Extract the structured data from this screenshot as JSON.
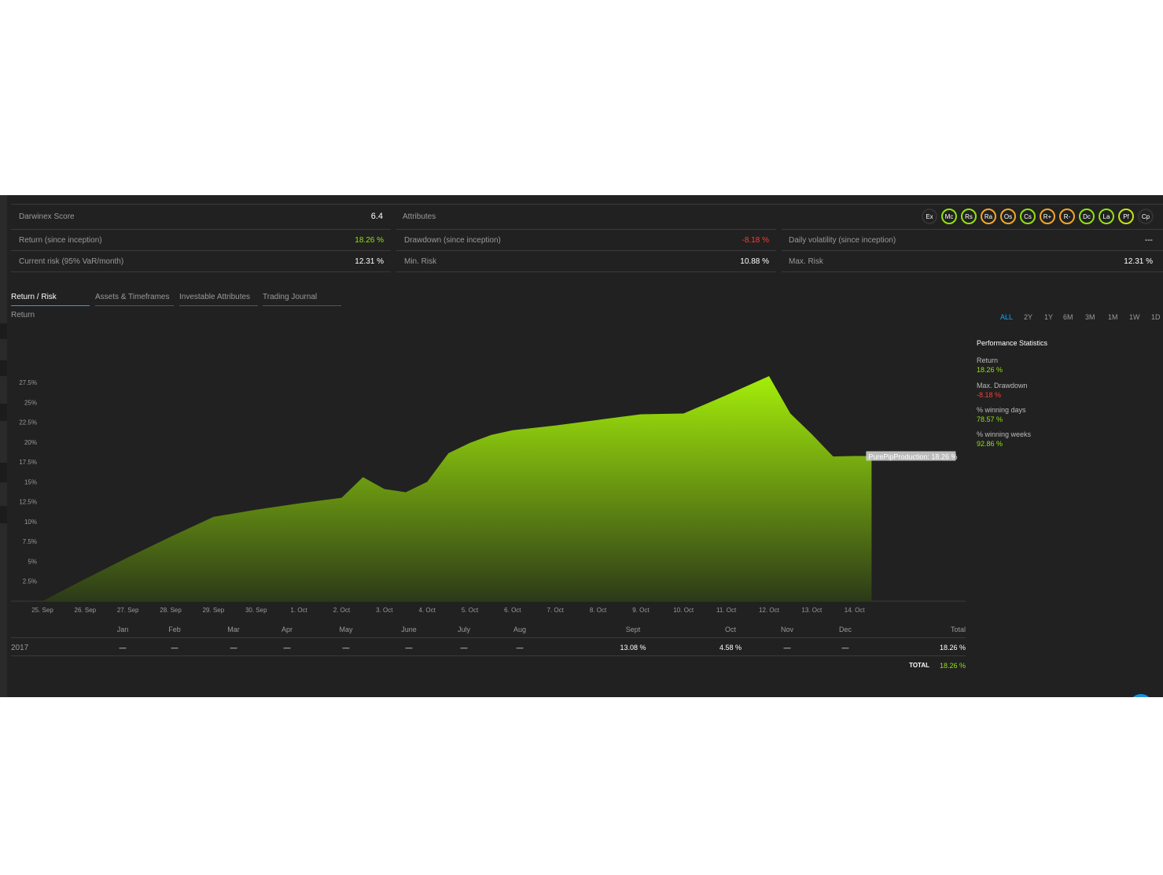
{
  "summary": {
    "score_label": "Darwinex Score",
    "score_value": "6.4",
    "attributes_label": "Attributes",
    "return_label": "Return (since inception)",
    "return_value": "18.26 %",
    "drawdown_label": "Drawdown (since inception)",
    "drawdown_value": "-8.18 %",
    "volatility_label": "Daily volatility (since inception)",
    "volatility_value": "---",
    "current_risk_label": "Current risk (95% VaR/month)",
    "current_risk_value": "12.31 %",
    "min_risk_label": "Min. Risk",
    "min_risk_value": "10.88 %",
    "max_risk_label": "Max. Risk",
    "max_risk_value": "12.31 %"
  },
  "attributes": [
    {
      "code": "Ex",
      "color": "#333333"
    },
    {
      "code": "Mc",
      "color": "#8fe30c"
    },
    {
      "code": "Rs",
      "color": "#8fe30c"
    },
    {
      "code": "Ra",
      "color": "#f5a623"
    },
    {
      "code": "Os",
      "color": "#f5a623"
    },
    {
      "code": "Cs",
      "color": "#8fe30c"
    },
    {
      "code": "R+",
      "color": "#f5a623"
    },
    {
      "code": "R-",
      "color": "#f5a623"
    },
    {
      "code": "Dc",
      "color": "#8fe30c"
    },
    {
      "code": "La",
      "color": "#8fe30c"
    },
    {
      "code": "Pf",
      "color": "#c8e30c"
    },
    {
      "code": "Cp",
      "color": "#333333"
    }
  ],
  "tabs": [
    {
      "label": "Return / Risk",
      "active": true
    },
    {
      "label": "Assets & Timeframes",
      "active": false
    },
    {
      "label": "Investable Attributes",
      "active": false
    },
    {
      "label": "Trading Journal",
      "active": false
    }
  ],
  "chart_section_label": "Return",
  "ranges": [
    "ALL",
    "2Y",
    "1Y",
    "6M",
    "3M",
    "1M",
    "1W",
    "1D"
  ],
  "active_range": "ALL",
  "performance": {
    "title": "Performance Statistics",
    "items": [
      {
        "label": "Return",
        "value": "18.26 %",
        "tone": "green"
      },
      {
        "label": "Max. Drawdown",
        "value": "-8.18 %",
        "tone": "red"
      },
      {
        "label": "% winning days",
        "value": "78.57 %",
        "tone": "green"
      },
      {
        "label": "% winning weeks",
        "value": "92.86 %",
        "tone": "green"
      }
    ]
  },
  "chart_data": {
    "type": "area",
    "x": [
      "25. Sep",
      "26. Sep",
      "27. Sep",
      "28. Sep",
      "29. Sep",
      "30. Sep",
      "1. Oct",
      "2. Oct",
      "2.5 Oct",
      "3. Oct",
      "3.5 Oct",
      "4. Oct",
      "4.5 Oct",
      "5. Oct",
      "5.5 Oct",
      "6. Oct",
      "7. Oct",
      "8. Oct",
      "9. Oct",
      "10. Oct",
      "11. Oct",
      "12. Oct",
      "12.5 Oct",
      "13. Oct",
      "13.5 Oct",
      "14. Oct",
      "14.5 Oct"
    ],
    "x_ticks": [
      "25. Sep",
      "26. Sep",
      "27. Sep",
      "28. Sep",
      "29. Sep",
      "30. Sep",
      "1. Oct",
      "2. Oct",
      "3. Oct",
      "4. Oct",
      "5. Oct",
      "6. Oct",
      "7. Oct",
      "8. Oct",
      "9. Oct",
      "10. Oct",
      "11. Oct",
      "12. Oct",
      "13. Oct",
      "14. Oct"
    ],
    "points": [
      [
        0,
        0.0
      ],
      [
        1,
        2.8
      ],
      [
        2,
        5.5
      ],
      [
        3,
        8.1
      ],
      [
        4,
        10.6
      ],
      [
        5,
        11.5
      ],
      [
        6,
        12.3
      ],
      [
        7,
        13.0
      ],
      [
        7.5,
        15.6
      ],
      [
        8,
        14.1
      ],
      [
        8.5,
        13.7
      ],
      [
        9,
        15.0
      ],
      [
        9.5,
        18.6
      ],
      [
        10,
        19.9
      ],
      [
        10.5,
        20.9
      ],
      [
        11,
        21.5
      ],
      [
        12,
        22.1
      ],
      [
        13,
        22.8
      ],
      [
        14,
        23.5
      ],
      [
        15,
        23.6
      ],
      [
        16,
        25.9
      ],
      [
        17,
        28.3
      ],
      [
        17.5,
        23.6
      ],
      [
        18,
        21.0
      ],
      [
        18.5,
        18.2
      ],
      [
        19,
        18.26
      ],
      [
        19.4,
        18.26
      ]
    ],
    "ylim": [
      0,
      28.5
    ],
    "y_ticks": [
      "2.5%",
      "5%",
      "7.5%",
      "10%",
      "12.5%",
      "15%",
      "17.5%",
      "20%",
      "22.5%",
      "25%",
      "27.5%"
    ],
    "y_tick_values": [
      2.5,
      5,
      7.5,
      10,
      12.5,
      15,
      17.5,
      20,
      22.5,
      25,
      27.5
    ],
    "series_name": "PurePipProduction",
    "tooltip": "PurePipProduction: 18.26 %",
    "color_top": "#a4ee0a",
    "color_bottom": "#2c3a18"
  },
  "monthly": {
    "year": "2017",
    "headers": [
      "Jan",
      "Feb",
      "Mar",
      "Apr",
      "May",
      "June",
      "July",
      "Aug",
      "Sept",
      "Oct",
      "Nov",
      "Dec",
      "Total"
    ],
    "values": [
      "—",
      "—",
      "—",
      "—",
      "—",
      "—",
      "—",
      "—",
      "13.08 %",
      "4.58 %",
      "—",
      "—",
      "18.26 %"
    ],
    "total_label": "TOTAL",
    "total_value": "18.26 %"
  }
}
